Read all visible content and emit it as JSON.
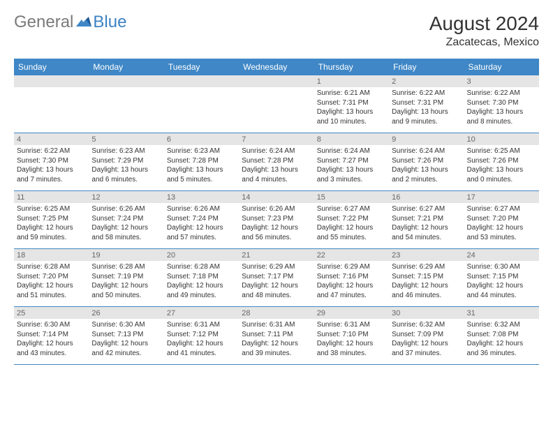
{
  "brand": {
    "part1": "General",
    "part2": "Blue"
  },
  "title": "August 2024",
  "location": "Zacatecas, Mexico",
  "colors": {
    "header_bg": "#3f87c6",
    "date_bar_bg": "#e5e5e5",
    "border": "#3f87c6",
    "logo_gray": "#7a7a7a",
    "logo_blue": "#3b82c4"
  },
  "day_names": [
    "Sunday",
    "Monday",
    "Tuesday",
    "Wednesday",
    "Thursday",
    "Friday",
    "Saturday"
  ],
  "weeks": [
    [
      {
        "date": "",
        "sunrise": "",
        "sunset": "",
        "daylight": ""
      },
      {
        "date": "",
        "sunrise": "",
        "sunset": "",
        "daylight": ""
      },
      {
        "date": "",
        "sunrise": "",
        "sunset": "",
        "daylight": ""
      },
      {
        "date": "",
        "sunrise": "",
        "sunset": "",
        "daylight": ""
      },
      {
        "date": "1",
        "sunrise": "Sunrise: 6:21 AM",
        "sunset": "Sunset: 7:31 PM",
        "daylight": "Daylight: 13 hours and 10 minutes."
      },
      {
        "date": "2",
        "sunrise": "Sunrise: 6:22 AM",
        "sunset": "Sunset: 7:31 PM",
        "daylight": "Daylight: 13 hours and 9 minutes."
      },
      {
        "date": "3",
        "sunrise": "Sunrise: 6:22 AM",
        "sunset": "Sunset: 7:30 PM",
        "daylight": "Daylight: 13 hours and 8 minutes."
      }
    ],
    [
      {
        "date": "4",
        "sunrise": "Sunrise: 6:22 AM",
        "sunset": "Sunset: 7:30 PM",
        "daylight": "Daylight: 13 hours and 7 minutes."
      },
      {
        "date": "5",
        "sunrise": "Sunrise: 6:23 AM",
        "sunset": "Sunset: 7:29 PM",
        "daylight": "Daylight: 13 hours and 6 minutes."
      },
      {
        "date": "6",
        "sunrise": "Sunrise: 6:23 AM",
        "sunset": "Sunset: 7:28 PM",
        "daylight": "Daylight: 13 hours and 5 minutes."
      },
      {
        "date": "7",
        "sunrise": "Sunrise: 6:24 AM",
        "sunset": "Sunset: 7:28 PM",
        "daylight": "Daylight: 13 hours and 4 minutes."
      },
      {
        "date": "8",
        "sunrise": "Sunrise: 6:24 AM",
        "sunset": "Sunset: 7:27 PM",
        "daylight": "Daylight: 13 hours and 3 minutes."
      },
      {
        "date": "9",
        "sunrise": "Sunrise: 6:24 AM",
        "sunset": "Sunset: 7:26 PM",
        "daylight": "Daylight: 13 hours and 2 minutes."
      },
      {
        "date": "10",
        "sunrise": "Sunrise: 6:25 AM",
        "sunset": "Sunset: 7:26 PM",
        "daylight": "Daylight: 13 hours and 0 minutes."
      }
    ],
    [
      {
        "date": "11",
        "sunrise": "Sunrise: 6:25 AM",
        "sunset": "Sunset: 7:25 PM",
        "daylight": "Daylight: 12 hours and 59 minutes."
      },
      {
        "date": "12",
        "sunrise": "Sunrise: 6:26 AM",
        "sunset": "Sunset: 7:24 PM",
        "daylight": "Daylight: 12 hours and 58 minutes."
      },
      {
        "date": "13",
        "sunrise": "Sunrise: 6:26 AM",
        "sunset": "Sunset: 7:24 PM",
        "daylight": "Daylight: 12 hours and 57 minutes."
      },
      {
        "date": "14",
        "sunrise": "Sunrise: 6:26 AM",
        "sunset": "Sunset: 7:23 PM",
        "daylight": "Daylight: 12 hours and 56 minutes."
      },
      {
        "date": "15",
        "sunrise": "Sunrise: 6:27 AM",
        "sunset": "Sunset: 7:22 PM",
        "daylight": "Daylight: 12 hours and 55 minutes."
      },
      {
        "date": "16",
        "sunrise": "Sunrise: 6:27 AM",
        "sunset": "Sunset: 7:21 PM",
        "daylight": "Daylight: 12 hours and 54 minutes."
      },
      {
        "date": "17",
        "sunrise": "Sunrise: 6:27 AM",
        "sunset": "Sunset: 7:20 PM",
        "daylight": "Daylight: 12 hours and 53 minutes."
      }
    ],
    [
      {
        "date": "18",
        "sunrise": "Sunrise: 6:28 AM",
        "sunset": "Sunset: 7:20 PM",
        "daylight": "Daylight: 12 hours and 51 minutes."
      },
      {
        "date": "19",
        "sunrise": "Sunrise: 6:28 AM",
        "sunset": "Sunset: 7:19 PM",
        "daylight": "Daylight: 12 hours and 50 minutes."
      },
      {
        "date": "20",
        "sunrise": "Sunrise: 6:28 AM",
        "sunset": "Sunset: 7:18 PM",
        "daylight": "Daylight: 12 hours and 49 minutes."
      },
      {
        "date": "21",
        "sunrise": "Sunrise: 6:29 AM",
        "sunset": "Sunset: 7:17 PM",
        "daylight": "Daylight: 12 hours and 48 minutes."
      },
      {
        "date": "22",
        "sunrise": "Sunrise: 6:29 AM",
        "sunset": "Sunset: 7:16 PM",
        "daylight": "Daylight: 12 hours and 47 minutes."
      },
      {
        "date": "23",
        "sunrise": "Sunrise: 6:29 AM",
        "sunset": "Sunset: 7:15 PM",
        "daylight": "Daylight: 12 hours and 46 minutes."
      },
      {
        "date": "24",
        "sunrise": "Sunrise: 6:30 AM",
        "sunset": "Sunset: 7:15 PM",
        "daylight": "Daylight: 12 hours and 44 minutes."
      }
    ],
    [
      {
        "date": "25",
        "sunrise": "Sunrise: 6:30 AM",
        "sunset": "Sunset: 7:14 PM",
        "daylight": "Daylight: 12 hours and 43 minutes."
      },
      {
        "date": "26",
        "sunrise": "Sunrise: 6:30 AM",
        "sunset": "Sunset: 7:13 PM",
        "daylight": "Daylight: 12 hours and 42 minutes."
      },
      {
        "date": "27",
        "sunrise": "Sunrise: 6:31 AM",
        "sunset": "Sunset: 7:12 PM",
        "daylight": "Daylight: 12 hours and 41 minutes."
      },
      {
        "date": "28",
        "sunrise": "Sunrise: 6:31 AM",
        "sunset": "Sunset: 7:11 PM",
        "daylight": "Daylight: 12 hours and 39 minutes."
      },
      {
        "date": "29",
        "sunrise": "Sunrise: 6:31 AM",
        "sunset": "Sunset: 7:10 PM",
        "daylight": "Daylight: 12 hours and 38 minutes."
      },
      {
        "date": "30",
        "sunrise": "Sunrise: 6:32 AM",
        "sunset": "Sunset: 7:09 PM",
        "daylight": "Daylight: 12 hours and 37 minutes."
      },
      {
        "date": "31",
        "sunrise": "Sunrise: 6:32 AM",
        "sunset": "Sunset: 7:08 PM",
        "daylight": "Daylight: 12 hours and 36 minutes."
      }
    ]
  ]
}
